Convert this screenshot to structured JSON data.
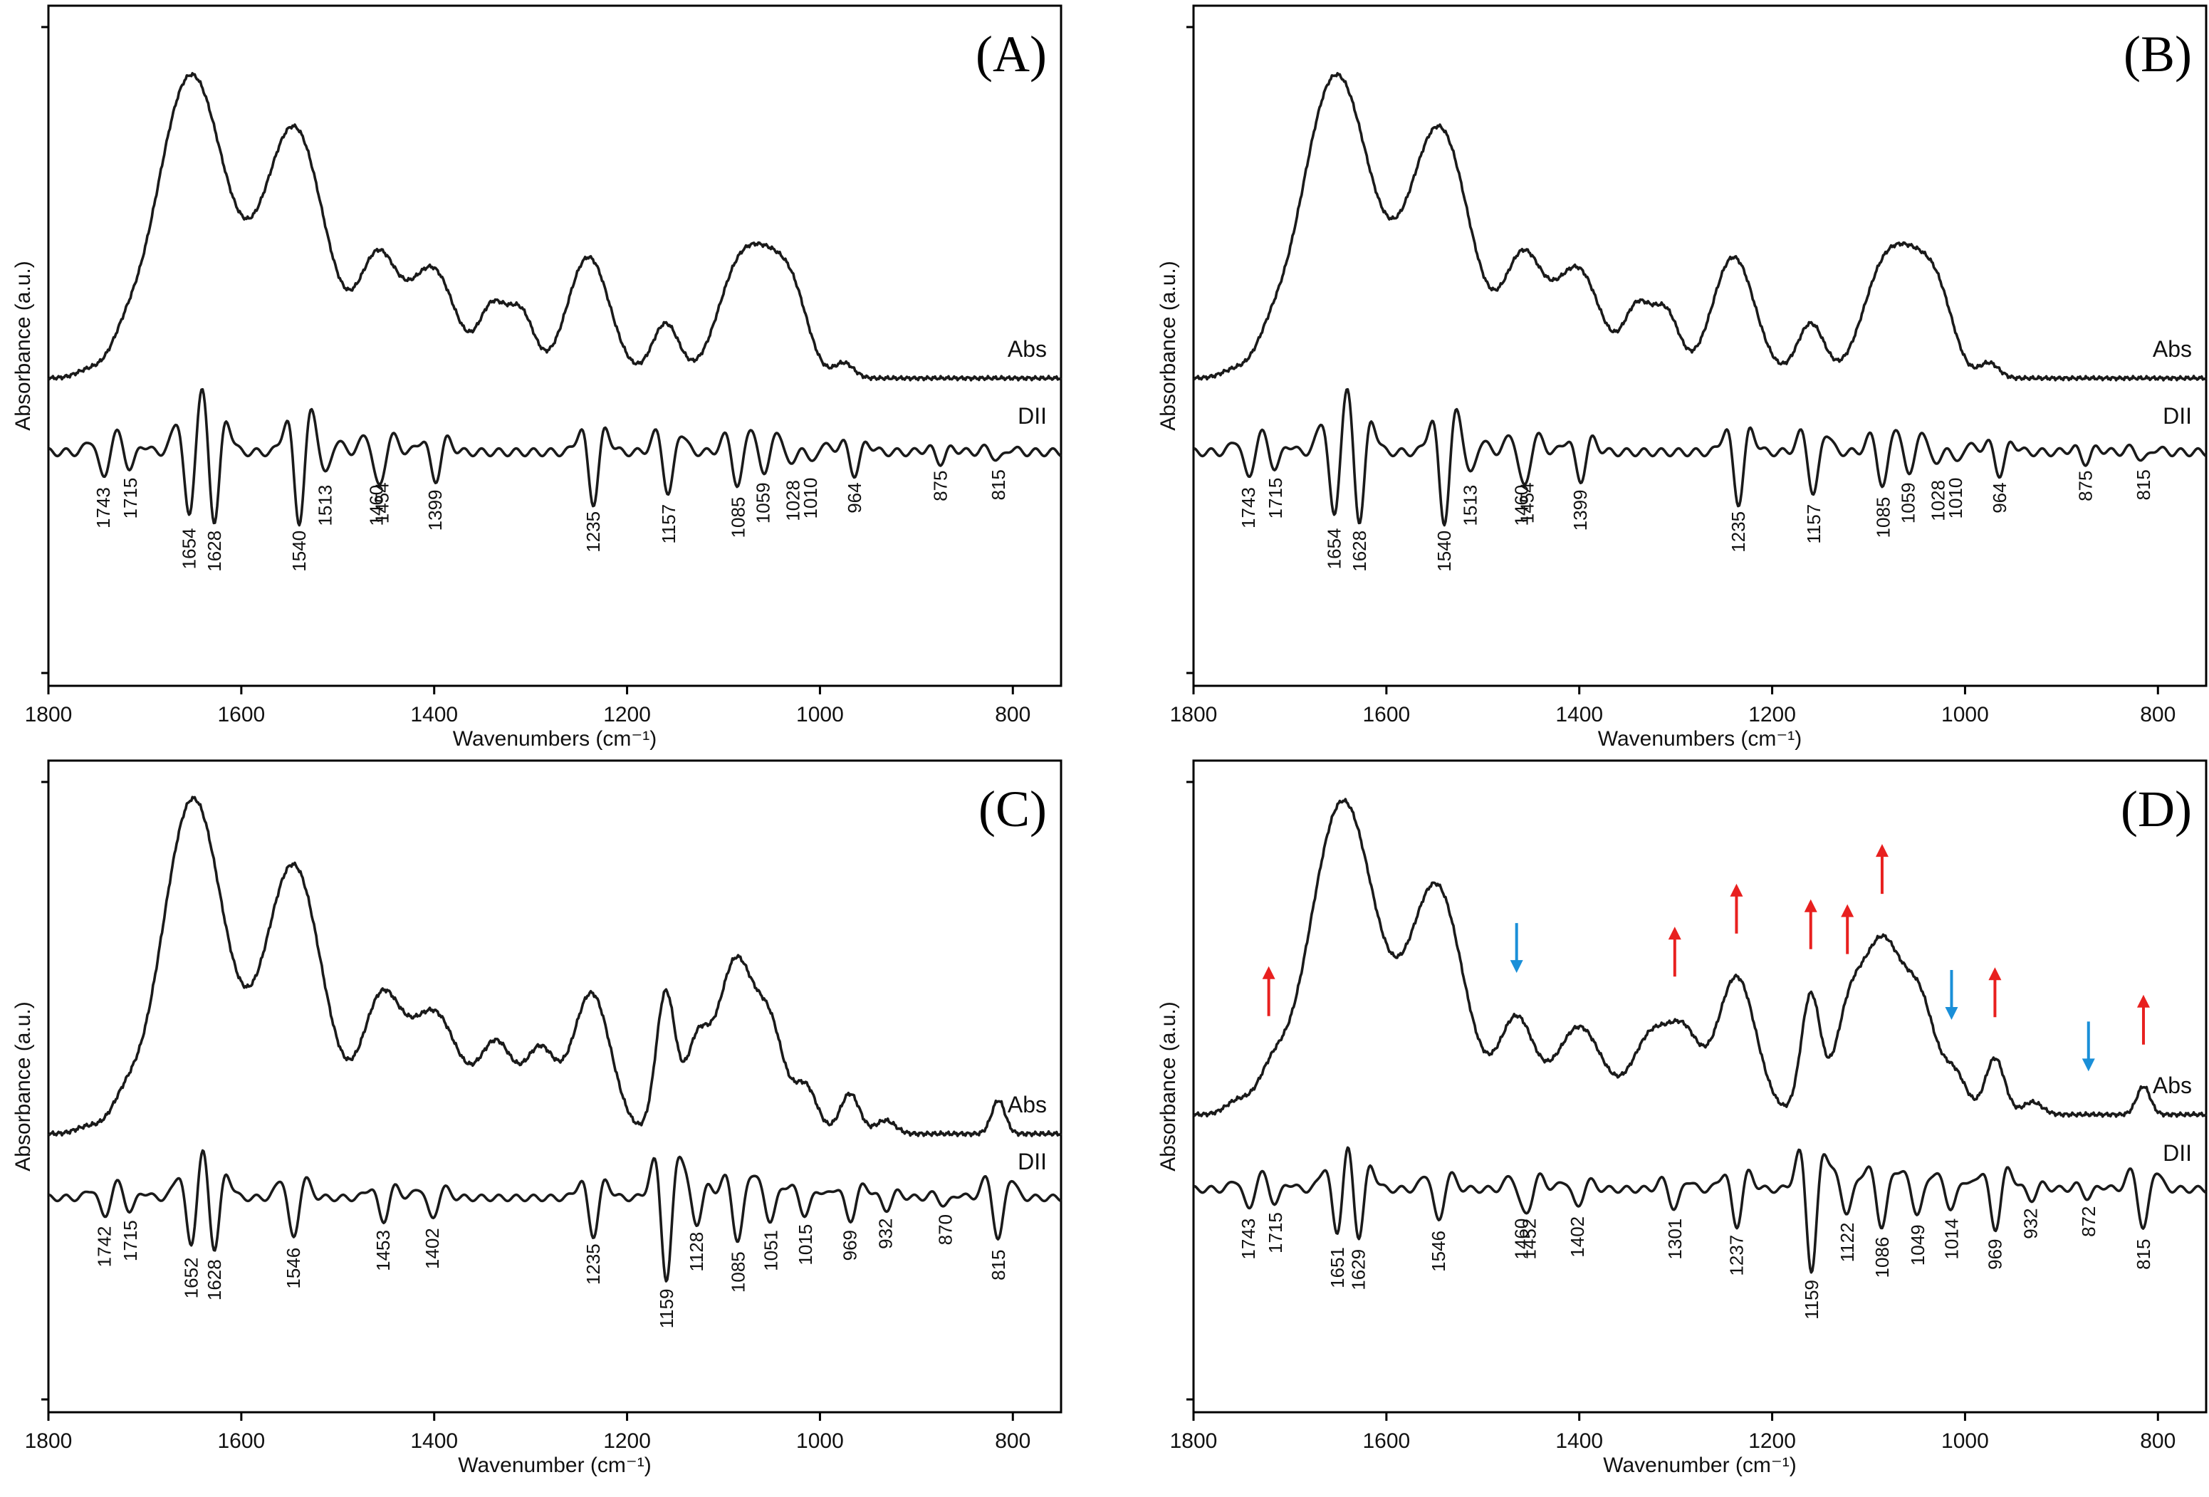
{
  "chart_data": [
    {
      "type": "line",
      "panel": "(A)",
      "xlabel": "Wavenumbers (cm⁻¹)",
      "ylabel": "Absorbance (a.u.)",
      "xlim": [
        1800,
        750
      ],
      "xticks": [
        "1800",
        "1600",
        "1400",
        "1200",
        "1000",
        "800"
      ],
      "trace_labels": [
        "Abs",
        "DII"
      ],
      "abs_peaks": [
        {
          "x": 1760,
          "h": 0.02,
          "w": 12
        },
        {
          "x": 1722,
          "h": 0.06,
          "w": 14
        },
        {
          "x": 1652,
          "h": 1.0,
          "w": 36
        },
        {
          "x": 1545,
          "h": 0.82,
          "w": 32
        },
        {
          "x": 1458,
          "h": 0.38,
          "w": 20
        },
        {
          "x": 1402,
          "h": 0.36,
          "w": 24
        },
        {
          "x": 1340,
          "h": 0.22,
          "w": 14
        },
        {
          "x": 1310,
          "h": 0.21,
          "w": 14
        },
        {
          "x": 1240,
          "h": 0.4,
          "w": 22
        },
        {
          "x": 1160,
          "h": 0.18,
          "w": 14
        },
        {
          "x": 1085,
          "h": 0.34,
          "w": 22
        },
        {
          "x": 1050,
          "h": 0.28,
          "w": 20
        },
        {
          "x": 1025,
          "h": 0.18,
          "w": 16
        },
        {
          "x": 975,
          "h": 0.05,
          "w": 10
        }
      ],
      "dii_peaks": [
        {
          "x": 1743,
          "d": 0.55
        },
        {
          "x": 1715,
          "d": 0.35
        },
        {
          "x": 1654,
          "d": 1.4
        },
        {
          "x": 1628,
          "d": 1.45
        },
        {
          "x": 1540,
          "d": 1.45
        },
        {
          "x": 1513,
          "d": 0.5
        },
        {
          "x": 1460,
          "d": 0.5
        },
        {
          "x": 1454,
          "d": 0.45
        },
        {
          "x": 1399,
          "d": 0.6
        },
        {
          "x": 1235,
          "d": 1.05
        },
        {
          "x": 1157,
          "d": 0.9
        },
        {
          "x": 1085,
          "d": 0.75
        },
        {
          "x": 1059,
          "d": 0.45
        },
        {
          "x": 1028,
          "d": 0.4
        },
        {
          "x": 1010,
          "d": 0.35
        },
        {
          "x": 964,
          "d": 0.45
        },
        {
          "x": 875,
          "d": 0.2
        },
        {
          "x": 815,
          "d": 0.18
        }
      ],
      "dii_labels": [
        {
          "x": 1743,
          "text": "1743"
        },
        {
          "x": 1715,
          "text": "1715"
        },
        {
          "x": 1654,
          "text": "1654"
        },
        {
          "x": 1628,
          "text": "1628"
        },
        {
          "x": 1540,
          "text": "1540"
        },
        {
          "x": 1513,
          "text": "1513"
        },
        {
          "x": 1460,
          "text": "1460"
        },
        {
          "x": 1454,
          "text": "1454"
        },
        {
          "x": 1399,
          "text": "1399"
        },
        {
          "x": 1235,
          "text": "1235"
        },
        {
          "x": 1157,
          "text": "1157"
        },
        {
          "x": 1085,
          "text": "1085"
        },
        {
          "x": 1059,
          "text": "1059"
        },
        {
          "x": 1028,
          "text": "1028"
        },
        {
          "x": 1010,
          "text": "1010"
        },
        {
          "x": 964,
          "text": "964"
        },
        {
          "x": 875,
          "text": "875"
        },
        {
          "x": 815,
          "text": "815"
        }
      ],
      "arrows": []
    },
    {
      "type": "line",
      "panel": "(B)",
      "xlabel": "Wavenumbers (cm⁻¹)",
      "ylabel": "Absorbance (a.u.)",
      "xlim": [
        1800,
        750
      ],
      "xticks": [
        "1800",
        "1600",
        "1400",
        "1200",
        "1000",
        "800"
      ],
      "trace_labels": [
        "Abs",
        "DII"
      ],
      "abs_peaks": [
        {
          "x": 1760,
          "h": 0.02,
          "w": 12
        },
        {
          "x": 1722,
          "h": 0.06,
          "w": 14
        },
        {
          "x": 1652,
          "h": 1.0,
          "w": 36
        },
        {
          "x": 1545,
          "h": 0.82,
          "w": 32
        },
        {
          "x": 1458,
          "h": 0.38,
          "w": 20
        },
        {
          "x": 1402,
          "h": 0.36,
          "w": 24
        },
        {
          "x": 1340,
          "h": 0.22,
          "w": 14
        },
        {
          "x": 1310,
          "h": 0.21,
          "w": 14
        },
        {
          "x": 1240,
          "h": 0.4,
          "w": 22
        },
        {
          "x": 1160,
          "h": 0.18,
          "w": 14
        },
        {
          "x": 1085,
          "h": 0.34,
          "w": 22
        },
        {
          "x": 1050,
          "h": 0.28,
          "w": 20
        },
        {
          "x": 1025,
          "h": 0.18,
          "w": 16
        },
        {
          "x": 975,
          "h": 0.05,
          "w": 10
        }
      ],
      "dii_peaks": [
        {
          "x": 1743,
          "d": 0.55
        },
        {
          "x": 1715,
          "d": 0.35
        },
        {
          "x": 1654,
          "d": 1.4
        },
        {
          "x": 1628,
          "d": 1.45
        },
        {
          "x": 1540,
          "d": 1.45
        },
        {
          "x": 1513,
          "d": 0.5
        },
        {
          "x": 1460,
          "d": 0.5
        },
        {
          "x": 1454,
          "d": 0.45
        },
        {
          "x": 1399,
          "d": 0.6
        },
        {
          "x": 1235,
          "d": 1.05
        },
        {
          "x": 1157,
          "d": 0.9
        },
        {
          "x": 1085,
          "d": 0.75
        },
        {
          "x": 1059,
          "d": 0.45
        },
        {
          "x": 1028,
          "d": 0.4
        },
        {
          "x": 1010,
          "d": 0.35
        },
        {
          "x": 964,
          "d": 0.45
        },
        {
          "x": 875,
          "d": 0.2
        },
        {
          "x": 815,
          "d": 0.18
        }
      ],
      "dii_labels": [
        {
          "x": 1743,
          "text": "1743"
        },
        {
          "x": 1715,
          "text": "1715"
        },
        {
          "x": 1654,
          "text": "1654"
        },
        {
          "x": 1628,
          "text": "1628"
        },
        {
          "x": 1540,
          "text": "1540"
        },
        {
          "x": 1513,
          "text": "1513"
        },
        {
          "x": 1460,
          "text": "1460"
        },
        {
          "x": 1454,
          "text": "1454"
        },
        {
          "x": 1399,
          "text": "1399"
        },
        {
          "x": 1235,
          "text": "1235"
        },
        {
          "x": 1157,
          "text": "1157"
        },
        {
          "x": 1085,
          "text": "1085"
        },
        {
          "x": 1059,
          "text": "1059"
        },
        {
          "x": 1028,
          "text": "1028"
        },
        {
          "x": 1010,
          "text": "1010"
        },
        {
          "x": 964,
          "text": "964"
        },
        {
          "x": 875,
          "text": "875"
        },
        {
          "x": 815,
          "text": "815"
        }
      ],
      "arrows": []
    },
    {
      "type": "line",
      "panel": "(C)",
      "xlabel": "Wavenumber (cm⁻¹)",
      "ylabel": "Absorbance (a.u.)",
      "xlim": [
        1800,
        750
      ],
      "xticks": [
        "1800",
        "1600",
        "1400",
        "1200",
        "1000",
        "800"
      ],
      "trace_labels": [
        "Abs",
        "DII"
      ],
      "abs_peaks": [
        {
          "x": 1760,
          "h": 0.02,
          "w": 12
        },
        {
          "x": 1722,
          "h": 0.07,
          "w": 14
        },
        {
          "x": 1650,
          "h": 1.0,
          "w": 32
        },
        {
          "x": 1546,
          "h": 0.8,
          "w": 30
        },
        {
          "x": 1455,
          "h": 0.38,
          "w": 20
        },
        {
          "x": 1400,
          "h": 0.36,
          "w": 26
        },
        {
          "x": 1335,
          "h": 0.26,
          "w": 18
        },
        {
          "x": 1290,
          "h": 0.24,
          "w": 16
        },
        {
          "x": 1237,
          "h": 0.42,
          "w": 20
        },
        {
          "x": 1160,
          "h": 0.42,
          "w": 10
        },
        {
          "x": 1128,
          "h": 0.24,
          "w": 12
        },
        {
          "x": 1087,
          "h": 0.52,
          "w": 20
        },
        {
          "x": 1050,
          "h": 0.26,
          "w": 14
        },
        {
          "x": 1015,
          "h": 0.14,
          "w": 12
        },
        {
          "x": 969,
          "h": 0.12,
          "w": 10
        },
        {
          "x": 932,
          "h": 0.04,
          "w": 10
        },
        {
          "x": 815,
          "h": 0.1,
          "w": 7
        }
      ],
      "dii_peaks": [
        {
          "x": 1742,
          "d": 0.5
        },
        {
          "x": 1715,
          "d": 0.35
        },
        {
          "x": 1652,
          "d": 1.3
        },
        {
          "x": 1628,
          "d": 1.35
        },
        {
          "x": 1546,
          "d": 1.05
        },
        {
          "x": 1453,
          "d": 0.6
        },
        {
          "x": 1402,
          "d": 0.55
        },
        {
          "x": 1235,
          "d": 0.95
        },
        {
          "x": 1159,
          "d": 2.1
        },
        {
          "x": 1128,
          "d": 0.65
        },
        {
          "x": 1085,
          "d": 1.15
        },
        {
          "x": 1051,
          "d": 0.6
        },
        {
          "x": 1015,
          "d": 0.45
        },
        {
          "x": 969,
          "d": 0.6
        },
        {
          "x": 932,
          "d": 0.3
        },
        {
          "x": 870,
          "d": 0.2
        },
        {
          "x": 815,
          "d": 1.1
        }
      ],
      "dii_labels": [
        {
          "x": 1742,
          "text": "1742"
        },
        {
          "x": 1715,
          "text": "1715"
        },
        {
          "x": 1652,
          "text": "1652"
        },
        {
          "x": 1628,
          "text": "1628"
        },
        {
          "x": 1546,
          "text": "1546"
        },
        {
          "x": 1453,
          "text": "1453"
        },
        {
          "x": 1402,
          "text": "1402"
        },
        {
          "x": 1235,
          "text": "1235"
        },
        {
          "x": 1159,
          "text": "1159"
        },
        {
          "x": 1128,
          "text": "1128"
        },
        {
          "x": 1085,
          "text": "1085"
        },
        {
          "x": 1051,
          "text": "1051"
        },
        {
          "x": 1015,
          "text": "1015"
        },
        {
          "x": 969,
          "text": "969"
        },
        {
          "x": 932,
          "text": "932"
        },
        {
          "x": 870,
          "text": "870"
        },
        {
          "x": 815,
          "text": "815"
        }
      ],
      "arrows": []
    },
    {
      "type": "line",
      "panel": "(D)",
      "xlabel": "Wavenumber (cm⁻¹)",
      "ylabel": "Absorbance (a.u.)",
      "xlim": [
        1800,
        750
      ],
      "xticks": [
        "1800",
        "1600",
        "1400",
        "1200",
        "1000",
        "800"
      ],
      "trace_labels": [
        "Abs",
        "DII"
      ],
      "abs_peaks": [
        {
          "x": 1755,
          "h": 0.04,
          "w": 12
        },
        {
          "x": 1720,
          "h": 0.1,
          "w": 14
        },
        {
          "x": 1645,
          "h": 1.0,
          "w": 34
        },
        {
          "x": 1548,
          "h": 0.72,
          "w": 28
        },
        {
          "x": 1465,
          "h": 0.3,
          "w": 18
        },
        {
          "x": 1400,
          "h": 0.28,
          "w": 24
        },
        {
          "x": 1325,
          "h": 0.25,
          "w": 20
        },
        {
          "x": 1290,
          "h": 0.22,
          "w": 16
        },
        {
          "x": 1237,
          "h": 0.44,
          "w": 20
        },
        {
          "x": 1160,
          "h": 0.38,
          "w": 10
        },
        {
          "x": 1122,
          "h": 0.24,
          "w": 14
        },
        {
          "x": 1086,
          "h": 0.55,
          "w": 22
        },
        {
          "x": 1045,
          "h": 0.3,
          "w": 16
        },
        {
          "x": 1010,
          "h": 0.12,
          "w": 12
        },
        {
          "x": 969,
          "h": 0.18,
          "w": 10
        },
        {
          "x": 930,
          "h": 0.04,
          "w": 10
        },
        {
          "x": 815,
          "h": 0.09,
          "w": 7
        }
      ],
      "dii_peaks": [
        {
          "x": 1743,
          "d": 0.5
        },
        {
          "x": 1715,
          "d": 0.35
        },
        {
          "x": 1651,
          "d": 1.2
        },
        {
          "x": 1629,
          "d": 1.25
        },
        {
          "x": 1546,
          "d": 0.8
        },
        {
          "x": 1460,
          "d": 0.5
        },
        {
          "x": 1452,
          "d": 0.5
        },
        {
          "x": 1402,
          "d": 0.45
        },
        {
          "x": 1301,
          "d": 0.5
        },
        {
          "x": 1237,
          "d": 0.9
        },
        {
          "x": 1159,
          "d": 2.0
        },
        {
          "x": 1122,
          "d": 0.6
        },
        {
          "x": 1086,
          "d": 0.95
        },
        {
          "x": 1049,
          "d": 0.65
        },
        {
          "x": 1014,
          "d": 0.5
        },
        {
          "x": 969,
          "d": 1.0
        },
        {
          "x": 932,
          "d": 0.25
        },
        {
          "x": 872,
          "d": 0.2
        },
        {
          "x": 815,
          "d": 1.0
        }
      ],
      "dii_labels": [
        {
          "x": 1743,
          "text": "1743"
        },
        {
          "x": 1715,
          "text": "1715"
        },
        {
          "x": 1651,
          "text": "1651"
        },
        {
          "x": 1629,
          "text": "1629"
        },
        {
          "x": 1546,
          "text": "1546"
        },
        {
          "x": 1460,
          "text": "1460"
        },
        {
          "x": 1452,
          "text": "1452"
        },
        {
          "x": 1402,
          "text": "1402"
        },
        {
          "x": 1301,
          "text": "1301"
        },
        {
          "x": 1237,
          "text": "1237"
        },
        {
          "x": 1159,
          "text": "1159"
        },
        {
          "x": 1122,
          "text": "1122"
        },
        {
          "x": 1086,
          "text": "1086"
        },
        {
          "x": 1049,
          "text": "1049"
        },
        {
          "x": 1014,
          "text": "1014"
        },
        {
          "x": 969,
          "text": "969"
        },
        {
          "x": 932,
          "text": "932"
        },
        {
          "x": 872,
          "text": "872"
        },
        {
          "x": 815,
          "text": "815"
        }
      ],
      "arrows": [
        {
          "x": 1722,
          "dir": "up",
          "color": "#e8201f"
        },
        {
          "x": 1465,
          "dir": "down",
          "color": "#1a8fd8"
        },
        {
          "x": 1301,
          "dir": "up",
          "color": "#e8201f"
        },
        {
          "x": 1237,
          "dir": "up",
          "color": "#e8201f"
        },
        {
          "x": 1160,
          "dir": "up",
          "color": "#e8201f"
        },
        {
          "x": 1122,
          "dir": "up",
          "color": "#e8201f"
        },
        {
          "x": 1086,
          "dir": "up",
          "color": "#e8201f"
        },
        {
          "x": 1014,
          "dir": "down",
          "color": "#1a8fd8"
        },
        {
          "x": 969,
          "dir": "up",
          "color": "#e8201f"
        },
        {
          "x": 872,
          "dir": "down",
          "color": "#1a8fd8"
        },
        {
          "x": 815,
          "dir": "up",
          "color": "#e8201f"
        }
      ]
    }
  ]
}
